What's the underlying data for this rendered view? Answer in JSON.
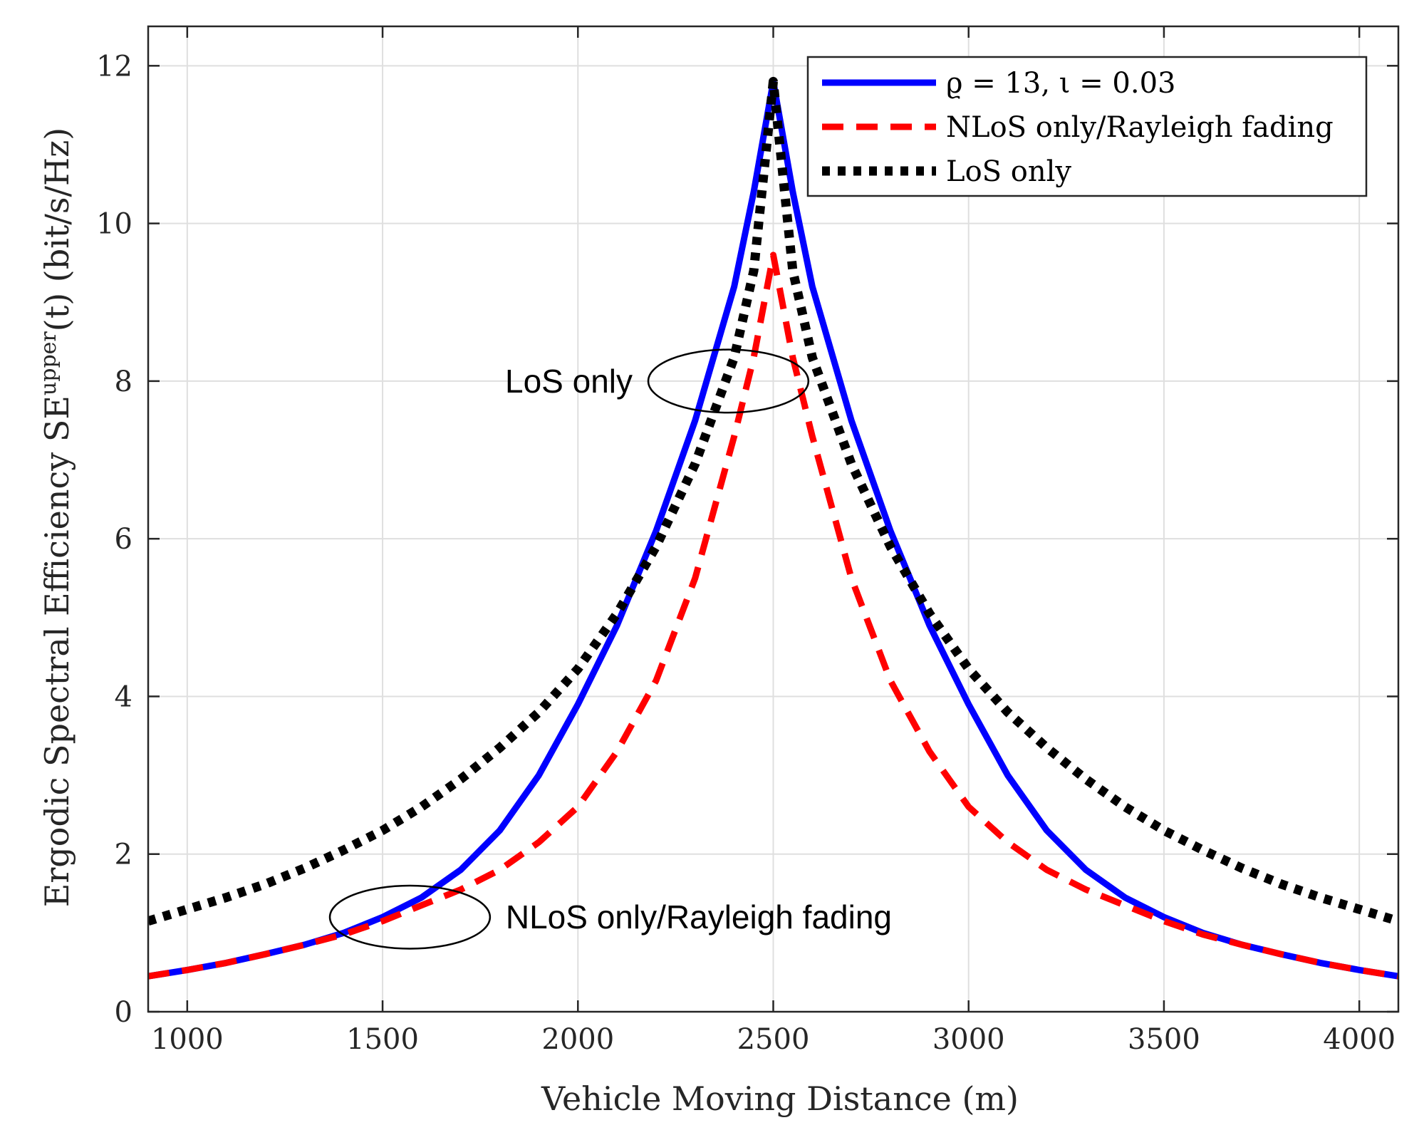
{
  "chart_data": {
    "type": "line",
    "title": "",
    "xlabel": "Vehicle Moving Distance (m)",
    "ylabel": "Ergodic Spectral Efficiency SE^upper(t) (bit/s/Hz)",
    "ylabel_parts": {
      "before": "Ergodic Spectral Efficiency SE",
      "superscript": "upper",
      "after": "(t) (bit/s/Hz)"
    },
    "xlim": [
      900,
      4100
    ],
    "ylim": [
      0,
      12.5
    ],
    "xticks": [
      1000,
      1500,
      2000,
      2500,
      3000,
      3500,
      4000
    ],
    "yticks": [
      0,
      2,
      4,
      6,
      8,
      10,
      12
    ],
    "grid": true,
    "legend_position": "top-right",
    "x": [
      900,
      1000,
      1100,
      1200,
      1300,
      1400,
      1500,
      1600,
      1700,
      1800,
      1900,
      2000,
      2100,
      2200,
      2300,
      2400,
      2450,
      2500,
      2550,
      2600,
      2700,
      2800,
      2900,
      3000,
      3100,
      3200,
      3300,
      3400,
      3500,
      3600,
      3700,
      3800,
      3900,
      4000,
      4100
    ],
    "series": [
      {
        "name": "ϱ = 13, ι = 0.03",
        "color": "#0000ff",
        "style": "solid",
        "values": [
          0.45,
          0.53,
          0.62,
          0.73,
          0.85,
          1.0,
          1.2,
          1.45,
          1.8,
          2.3,
          3.0,
          3.9,
          4.9,
          6.1,
          7.5,
          9.2,
          10.4,
          11.8,
          10.4,
          9.2,
          7.5,
          6.1,
          4.9,
          3.9,
          3.0,
          2.3,
          1.8,
          1.45,
          1.2,
          1.0,
          0.85,
          0.73,
          0.62,
          0.53,
          0.45
        ]
      },
      {
        "name": "NLoS only/Rayleigh fading",
        "color": "#ff0000",
        "style": "dashed",
        "values": [
          0.45,
          0.53,
          0.62,
          0.73,
          0.85,
          0.98,
          1.15,
          1.35,
          1.55,
          1.8,
          2.15,
          2.6,
          3.3,
          4.2,
          5.5,
          7.3,
          8.3,
          9.6,
          8.3,
          7.3,
          5.5,
          4.2,
          3.3,
          2.6,
          2.15,
          1.8,
          1.55,
          1.35,
          1.15,
          0.98,
          0.85,
          0.73,
          0.62,
          0.53,
          0.45
        ]
      },
      {
        "name": "LoS only",
        "color": "#000000",
        "style": "dotted",
        "values": [
          1.15,
          1.3,
          1.45,
          1.62,
          1.82,
          2.05,
          2.3,
          2.6,
          2.95,
          3.35,
          3.8,
          4.35,
          5.05,
          5.9,
          6.95,
          8.3,
          9.4,
          11.8,
          9.4,
          8.3,
          6.95,
          5.9,
          5.05,
          4.35,
          3.8,
          3.35,
          2.95,
          2.6,
          2.3,
          2.05,
          1.82,
          1.62,
          1.45,
          1.3,
          1.15
        ]
      }
    ],
    "annotations": [
      {
        "id": "los",
        "text": "LoS only",
        "ellipse_center": [
          2385,
          8.0
        ],
        "ellipse_radii": [
          205,
          0.4
        ]
      },
      {
        "id": "nlos",
        "text": "NLoS only/Rayleigh fading",
        "ellipse_center": [
          1570,
          1.2
        ],
        "ellipse_radii": [
          205,
          0.4
        ]
      }
    ]
  }
}
